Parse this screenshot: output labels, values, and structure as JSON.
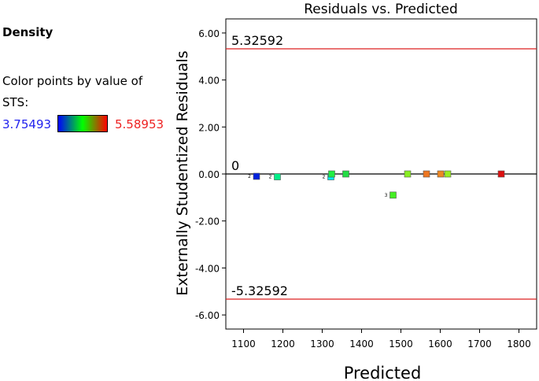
{
  "sidebar": {
    "response_name": "Density",
    "color_caption": "Color points by value of STS:",
    "legend_min": "3.75493",
    "legend_max": "5.58953",
    "legend_colors": [
      "#0000ff",
      "#00ff00",
      "#ff0000"
    ]
  },
  "chart_data": {
    "type": "scatter",
    "title": "Residuals vs. Predicted",
    "xlabel": "Predicted",
    "ylabel": "Externally Studentized Residuals",
    "xlim": [
      1055,
      1845
    ],
    "ylim": [
      -6.6,
      6.6
    ],
    "xticks": [
      1100,
      1200,
      1300,
      1400,
      1500,
      1600,
      1700,
      1800
    ],
    "yticks": [
      -6,
      -4,
      -2,
      0,
      2,
      4,
      6
    ],
    "ytick_labels": [
      "-6.00",
      "-4.00",
      "-2.00",
      "0.00",
      "2.00",
      "4.00",
      "6.00"
    ],
    "reference_lines": [
      {
        "value": 5.32592,
        "label": "5.32592",
        "color": "#dd2222"
      },
      {
        "value": 0,
        "label": "0",
        "color": "#000000"
      },
      {
        "value": -5.32592,
        "label": "-5.32592",
        "color": "#dd2222"
      }
    ],
    "points": [
      {
        "x": 1133,
        "y": -0.1,
        "color": "#0022dd",
        "count": "2"
      },
      {
        "x": 1186,
        "y": -0.12,
        "color": "#00ee88",
        "count": "2"
      },
      {
        "x": 1322,
        "y": -0.12,
        "color": "#00eeee",
        "count": "2"
      },
      {
        "x": 1324,
        "y": 0.0,
        "color": "#22ee44",
        "count": ""
      },
      {
        "x": 1360,
        "y": 0.0,
        "color": "#22dd44",
        "count": ""
      },
      {
        "x": 1480,
        "y": -0.9,
        "color": "#44ee22",
        "count": "3"
      },
      {
        "x": 1517,
        "y": 0.0,
        "color": "#88ee22",
        "count": ""
      },
      {
        "x": 1565,
        "y": 0.0,
        "color": "#ee7722",
        "count": ""
      },
      {
        "x": 1601,
        "y": 0.0,
        "color": "#ee8822",
        "count": ""
      },
      {
        "x": 1619,
        "y": 0.0,
        "color": "#99ee22",
        "count": ""
      },
      {
        "x": 1755,
        "y": 0.0,
        "color": "#dd1111",
        "count": ""
      }
    ]
  }
}
